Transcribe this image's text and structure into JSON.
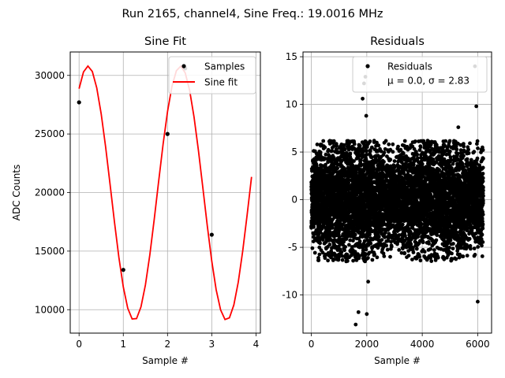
{
  "figure": {
    "suptitle": "Run 2165, channel4, Sine Freq.: 19.0016 MHz"
  },
  "colors": {
    "fit": "#ff0000",
    "points": "#000000",
    "grid": "#b0b0b0"
  },
  "chart_data": [
    {
      "type": "scatter+line",
      "title": "Sine Fit",
      "xlabel": "Sample #",
      "ylabel": "ADC Counts",
      "xlim": [
        -0.2,
        4.1
      ],
      "ylim": [
        8000,
        32000
      ],
      "xticks": [
        0,
        1,
        2,
        3,
        4
      ],
      "yticks": [
        10000,
        15000,
        20000,
        25000,
        30000
      ],
      "grid": true,
      "legend": {
        "placement": "top-right",
        "entries": [
          "Samples",
          "Sine fit"
        ]
      },
      "samples": {
        "name": "Samples",
        "x": [
          0,
          1,
          2,
          3
        ],
        "y": [
          27700,
          13400,
          25000,
          16400
        ]
      },
      "extra_point": {
        "x": 2.4,
        "y": 30600
      },
      "fit": {
        "name": "Sine fit",
        "amplitude": 10850,
        "offset": 19950,
        "freq_per_sample": 0.4787,
        "phase": 0.964,
        "x_range": [
          0,
          3.9
        ]
      }
    },
    {
      "type": "scatter",
      "title": "Residuals",
      "xlabel": "Sample #",
      "ylabel": "",
      "xlim": [
        -300,
        6500
      ],
      "ylim": [
        -14,
        15.5
      ],
      "xticks": [
        0,
        2000,
        4000,
        6000
      ],
      "yticks": [
        -10,
        -5,
        0,
        5,
        10,
        15
      ],
      "grid": true,
      "legend": {
        "placement": "top-right",
        "entries": [
          "Residuals",
          "μ = 0.0, σ = 2.83"
        ]
      },
      "stats": {
        "mu": 0.0,
        "sigma": 2.83
      },
      "n_points": 6200,
      "outliers": {
        "x": [
          1600,
          1900,
          1950,
          1850,
          2000,
          1980,
          5900,
          6000,
          5950,
          5300,
          2050,
          1700
        ],
        "y": [
          -13.1,
          12.2,
          12.9,
          10.6,
          -12.0,
          8.8,
          14.0,
          -10.7,
          9.8,
          7.6,
          -8.6,
          -11.8
        ]
      }
    }
  ]
}
